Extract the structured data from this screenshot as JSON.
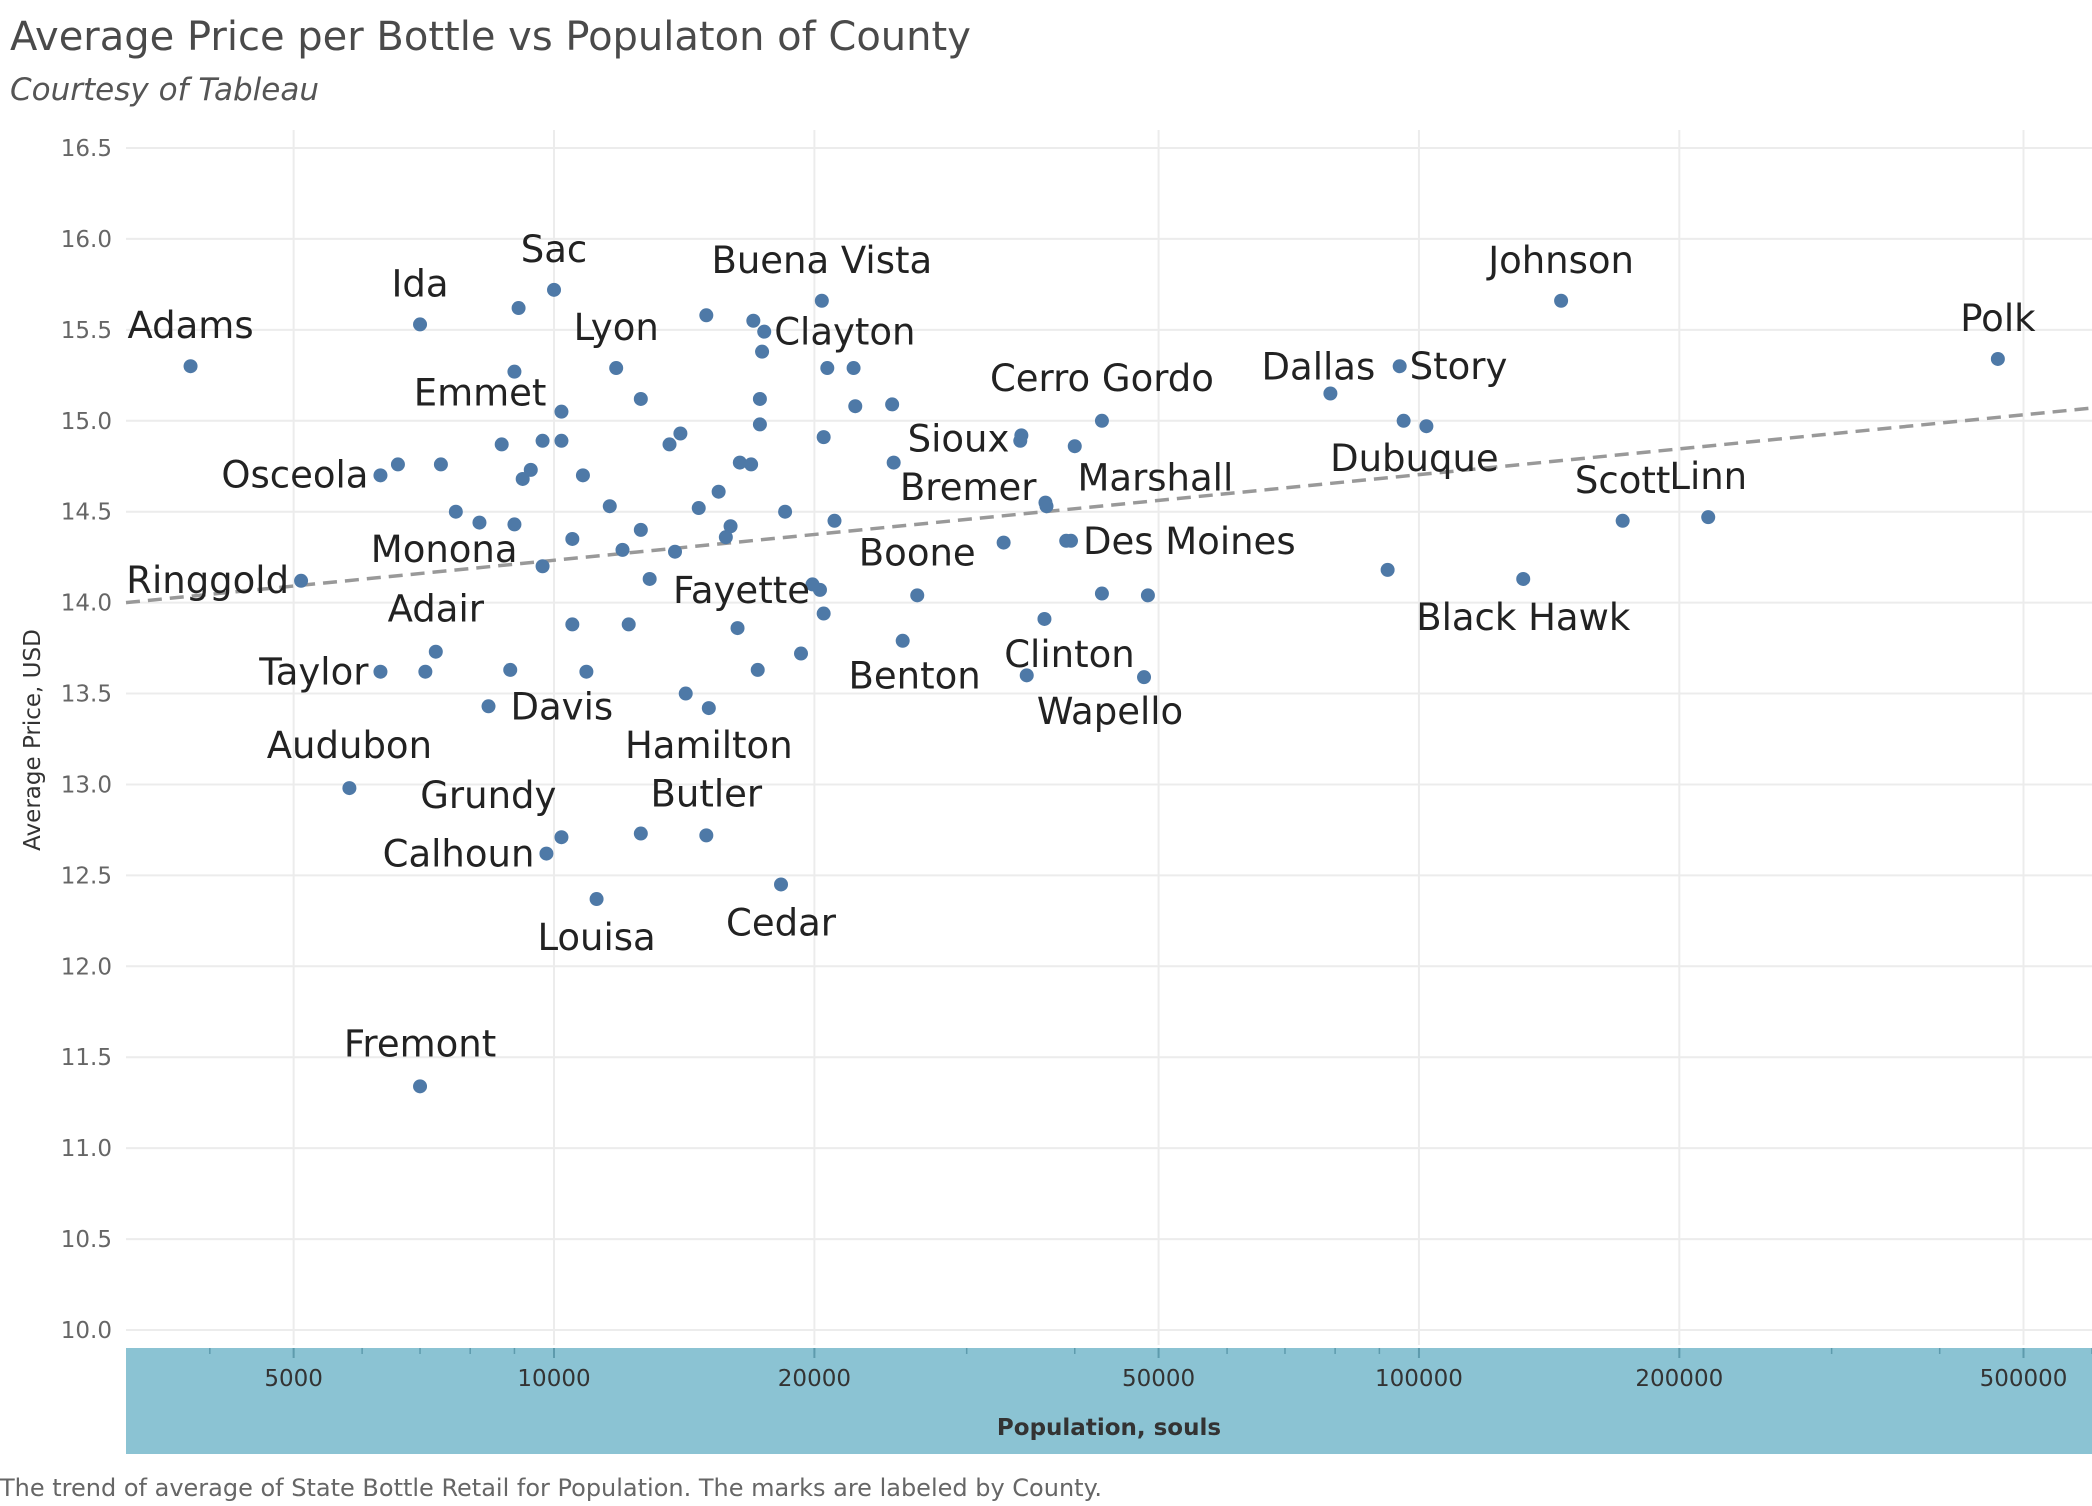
{
  "title": "Average Price per Bottle vs Populaton of County",
  "subtitle": "Courtesy of Tableau",
  "caption": "The trend of average of State Bottle Retail for Population.  The marks are labeled by County.",
  "colors": {
    "point": "#4e79a7",
    "trend": "#999999",
    "grid": "#ececec",
    "axis_band": "#8bc3d3"
  },
  "chart_data": {
    "type": "scatter",
    "x_scale": "log",
    "xlabel": "Population, souls",
    "ylabel": "Average Price, USD",
    "xlim": [
      3200,
      600000
    ],
    "ylim": [
      10.0,
      16.5
    ],
    "x_ticks": [
      {
        "value": 5000,
        "label": "5000"
      },
      {
        "value": 10000,
        "label": "10000"
      },
      {
        "value": 20000,
        "label": "20000"
      },
      {
        "value": 50000,
        "label": "50000"
      },
      {
        "value": 100000,
        "label": "100000"
      },
      {
        "value": 200000,
        "label": "200000"
      },
      {
        "value": 500000,
        "label": "500000"
      }
    ],
    "y_ticks": [
      {
        "value": 10.0,
        "label": "10.0"
      },
      {
        "value": 10.5,
        "label": "10.5"
      },
      {
        "value": 11.0,
        "label": "11.0"
      },
      {
        "value": 11.5,
        "label": "11.5"
      },
      {
        "value": 12.0,
        "label": "12.0"
      },
      {
        "value": 12.5,
        "label": "12.5"
      },
      {
        "value": 13.0,
        "label": "13.0"
      },
      {
        "value": 13.5,
        "label": "13.5"
      },
      {
        "value": 14.0,
        "label": "14.0"
      },
      {
        "value": 14.5,
        "label": "14.5"
      },
      {
        "value": 15.0,
        "label": "15.0"
      },
      {
        "value": 15.5,
        "label": "15.5"
      },
      {
        "value": 16.0,
        "label": "16.0"
      },
      {
        "value": 16.5,
        "label": "16.5"
      }
    ],
    "grid": true,
    "trend_line": {
      "style": "dashed",
      "y_at_xmin": 14.0,
      "y_at_xmax": 15.07
    },
    "points": [
      {
        "x": 3800,
        "y": 15.3,
        "label": "Adams"
      },
      {
        "x": 7000,
        "y": 15.53,
        "label": "Ida"
      },
      {
        "x": 9100,
        "y": 15.62
      },
      {
        "x": 10000,
        "y": 15.72,
        "label": "Sac"
      },
      {
        "x": 15000,
        "y": 15.58
      },
      {
        "x": 20400,
        "y": 15.66,
        "label": "Buena Vista"
      },
      {
        "x": 17000,
        "y": 15.55
      },
      {
        "x": 17500,
        "y": 15.49,
        "label": "Clayton"
      },
      {
        "x": 17400,
        "y": 15.38
      },
      {
        "x": 11800,
        "y": 15.29,
        "label": "Lyon"
      },
      {
        "x": 9000,
        "y": 15.27
      },
      {
        "x": 20700,
        "y": 15.29
      },
      {
        "x": 22200,
        "y": 15.29
      },
      {
        "x": 10200,
        "y": 15.05,
        "label": "Emmet"
      },
      {
        "x": 12600,
        "y": 15.12
      },
      {
        "x": 17300,
        "y": 15.12
      },
      {
        "x": 22300,
        "y": 15.08
      },
      {
        "x": 24600,
        "y": 15.09
      },
      {
        "x": 17300,
        "y": 14.98
      },
      {
        "x": 14000,
        "y": 14.93
      },
      {
        "x": 13600,
        "y": 14.87
      },
      {
        "x": 20500,
        "y": 14.91
      },
      {
        "x": 9700,
        "y": 14.89
      },
      {
        "x": 10200,
        "y": 14.89
      },
      {
        "x": 8700,
        "y": 14.87
      },
      {
        "x": 34700,
        "y": 14.92,
        "label": "Sioux"
      },
      {
        "x": 34600,
        "y": 14.89
      },
      {
        "x": 43000,
        "y": 15.0,
        "label": "Cerro Gordo"
      },
      {
        "x": 40000,
        "y": 14.86
      },
      {
        "x": 6300,
        "y": 14.7,
        "label": "Osceola"
      },
      {
        "x": 6600,
        "y": 14.76
      },
      {
        "x": 7400,
        "y": 14.76
      },
      {
        "x": 9400,
        "y": 14.73
      },
      {
        "x": 9200,
        "y": 14.68
      },
      {
        "x": 10800,
        "y": 14.7
      },
      {
        "x": 16400,
        "y": 14.77
      },
      {
        "x": 16900,
        "y": 14.76
      },
      {
        "x": 24700,
        "y": 14.77
      },
      {
        "x": 15500,
        "y": 14.61
      },
      {
        "x": 7700,
        "y": 14.5
      },
      {
        "x": 8200,
        "y": 14.44
      },
      {
        "x": 9000,
        "y": 14.43
      },
      {
        "x": 11600,
        "y": 14.53
      },
      {
        "x": 14700,
        "y": 14.52
      },
      {
        "x": 18500,
        "y": 14.5
      },
      {
        "x": 21100,
        "y": 14.45
      },
      {
        "x": 16000,
        "y": 14.42
      },
      {
        "x": 15800,
        "y": 14.36
      },
      {
        "x": 12600,
        "y": 14.4
      },
      {
        "x": 10500,
        "y": 14.35
      },
      {
        "x": 12000,
        "y": 14.29
      },
      {
        "x": 13800,
        "y": 14.28
      },
      {
        "x": 37100,
        "y": 14.53,
        "label": "Bremer"
      },
      {
        "x": 33100,
        "y": 14.33
      },
      {
        "x": 39100,
        "y": 14.34
      },
      {
        "x": 5100,
        "y": 14.12,
        "label": "Ringgold"
      },
      {
        "x": 9700,
        "y": 14.2,
        "label": "Monona"
      },
      {
        "x": 12900,
        "y": 14.13
      },
      {
        "x": 19900,
        "y": 14.1
      },
      {
        "x": 20300,
        "y": 14.07,
        "label": "Fayette"
      },
      {
        "x": 26300,
        "y": 14.04,
        "label": "Boone"
      },
      {
        "x": 43000,
        "y": 14.05
      },
      {
        "x": 48600,
        "y": 14.04
      },
      {
        "x": 20500,
        "y": 13.94
      },
      {
        "x": 10500,
        "y": 13.88
      },
      {
        "x": 12200,
        "y": 13.88
      },
      {
        "x": 16300,
        "y": 13.86
      },
      {
        "x": 36900,
        "y": 13.91,
        "label": "Clinton"
      },
      {
        "x": 25300,
        "y": 13.79
      },
      {
        "x": 19300,
        "y": 13.72
      },
      {
        "x": 7300,
        "y": 13.73,
        "label": "Adair"
      },
      {
        "x": 6300,
        "y": 13.62,
        "label": "Taylor"
      },
      {
        "x": 7100,
        "y": 13.62
      },
      {
        "x": 8900,
        "y": 13.63
      },
      {
        "x": 10900,
        "y": 13.62
      },
      {
        "x": 17200,
        "y": 13.63
      },
      {
        "x": 35200,
        "y": 13.6,
        "label": "Benton"
      },
      {
        "x": 48100,
        "y": 13.59,
        "label": "Wapello"
      },
      {
        "x": 14200,
        "y": 13.5
      },
      {
        "x": 15100,
        "y": 13.42,
        "label": "Hamilton"
      },
      {
        "x": 8400,
        "y": 13.43,
        "label": "Davis"
      },
      {
        "x": 5800,
        "y": 12.98,
        "label": "Audubon"
      },
      {
        "x": 10200,
        "y": 12.71,
        "label": "Grundy"
      },
      {
        "x": 12600,
        "y": 12.73
      },
      {
        "x": 15000,
        "y": 12.72,
        "label": "Butler"
      },
      {
        "x": 9800,
        "y": 12.62,
        "label": "Calhoun"
      },
      {
        "x": 11200,
        "y": 12.37,
        "label": "Louisa"
      },
      {
        "x": 18300,
        "y": 12.45,
        "label": "Cedar"
      },
      {
        "x": 7000,
        "y": 11.34,
        "label": "Fremont"
      },
      {
        "x": 146000,
        "y": 15.66,
        "label": "Johnson"
      },
      {
        "x": 95000,
        "y": 15.3,
        "label": "Story"
      },
      {
        "x": 79000,
        "y": 15.15,
        "label": "Dallas"
      },
      {
        "x": 96000,
        "y": 15.0
      },
      {
        "x": 102000,
        "y": 14.97,
        "label": "Dubuque"
      },
      {
        "x": 172000,
        "y": 14.45,
        "label": "Scott"
      },
      {
        "x": 216000,
        "y": 14.47,
        "label": "Linn"
      },
      {
        "x": 92000,
        "y": 14.18
      },
      {
        "x": 132000,
        "y": 14.13,
        "label": "Black Hawk"
      },
      {
        "x": 467000,
        "y": 15.34,
        "label": "Polk"
      },
      {
        "x": 39600,
        "y": 14.34,
        "label": "Des Moines"
      },
      {
        "x": 37000,
        "y": 14.55,
        "label": "Marshall"
      }
    ]
  }
}
